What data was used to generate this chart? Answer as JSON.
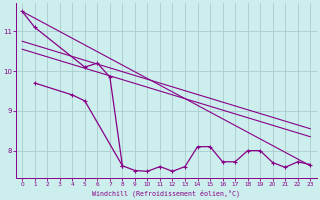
{
  "xlabel": "Windchill (Refroidissement éolien,°C)",
  "bg_color": "#cceeed",
  "grid_color": "#aacccc",
  "line_color": "#880088",
  "xlim": [
    -0.5,
    23.5
  ],
  "ylim": [
    7.3,
    11.7
  ],
  "xticks": [
    0,
    1,
    2,
    3,
    4,
    5,
    6,
    7,
    8,
    9,
    10,
    11,
    12,
    13,
    14,
    15,
    16,
    17,
    18,
    19,
    20,
    21,
    22,
    23
  ],
  "yticks": [
    8,
    9,
    10,
    11
  ],
  "trend1": {
    "x": [
      0,
      23
    ],
    "y": [
      11.5,
      7.62
    ]
  },
  "trend2": {
    "x": [
      0,
      23
    ],
    "y": [
      10.75,
      8.55
    ]
  },
  "trend3": {
    "x": [
      0,
      23
    ],
    "y": [
      10.55,
      8.35
    ]
  },
  "curve1_x": [
    0,
    1,
    5,
    6,
    7,
    8
  ],
  "curve1_y": [
    11.5,
    11.1,
    10.1,
    10.2,
    9.85,
    7.62
  ],
  "curve2_x": [
    1,
    4,
    5,
    8,
    9,
    10,
    11,
    12,
    13,
    14,
    15,
    16,
    17,
    18,
    19,
    20,
    21,
    22,
    23
  ],
  "curve2_y": [
    9.7,
    9.4,
    9.25,
    7.62,
    7.5,
    7.48,
    7.6,
    7.48,
    7.6,
    8.1,
    8.1,
    7.72,
    7.72,
    8.0,
    8.0,
    7.7,
    7.58,
    7.72,
    7.65
  ]
}
